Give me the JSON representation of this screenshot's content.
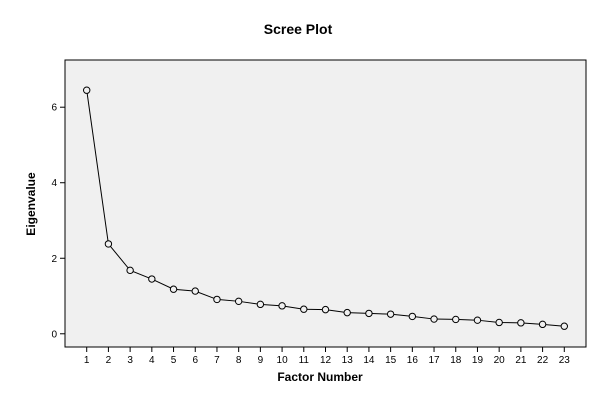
{
  "chart_data": {
    "type": "line",
    "title": "Scree Plot",
    "xlabel": "Factor Number",
    "ylabel": "Eigenvalue",
    "x": [
      1,
      2,
      3,
      4,
      5,
      6,
      7,
      8,
      9,
      10,
      11,
      12,
      13,
      14,
      15,
      16,
      17,
      18,
      19,
      20,
      21,
      22,
      23
    ],
    "series": [
      {
        "values": [
          6.45,
          2.38,
          1.68,
          1.45,
          1.18,
          1.13,
          0.91,
          0.86,
          0.78,
          0.74,
          0.65,
          0.64,
          0.56,
          0.54,
          0.52,
          0.46,
          0.39,
          0.38,
          0.36,
          0.3,
          0.29,
          0.25,
          0.2
        ]
      }
    ],
    "xlim": [
      0,
      24
    ],
    "ylim": [
      -0.35,
      7.25
    ],
    "yticks": [
      0,
      2,
      4,
      6
    ],
    "grid": false,
    "legend": "none",
    "colors": {
      "plot_background": "#f0f0f0",
      "line": "#000000",
      "marker_fill": "#f0f0f0"
    }
  }
}
